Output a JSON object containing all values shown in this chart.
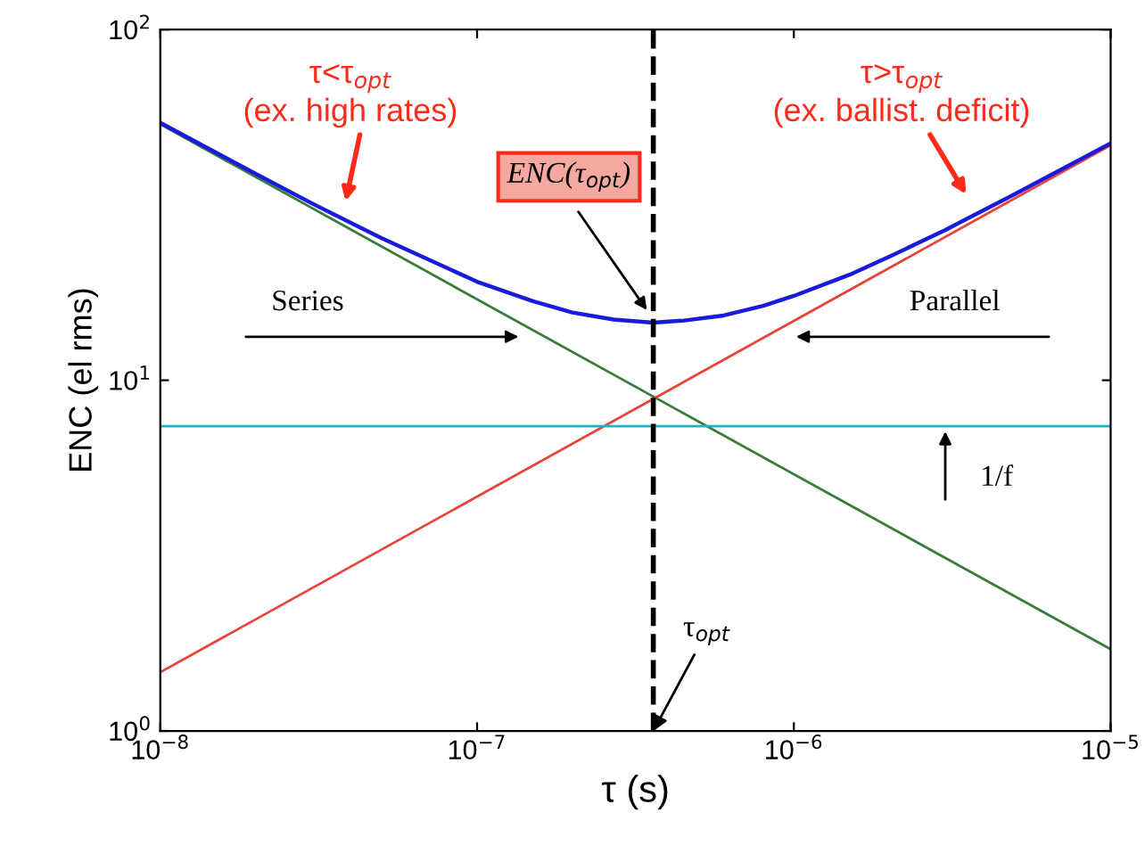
{
  "chart_data": {
    "type": "line",
    "xlabel": "τ (s)",
    "ylabel": "ENC (el rms)",
    "log": "xy",
    "grid": false,
    "xlim": [
      1e-08,
      1e-05
    ],
    "ylim": [
      1,
      100
    ],
    "xticks": [
      {
        "value": 1e-08,
        "label": "10$^{−8}$"
      },
      {
        "value": 1e-07,
        "label": "10$^{−7}$"
      },
      {
        "value": 1e-06,
        "label": "10$^{−6}$"
      },
      {
        "value": 1e-05,
        "label": "10$^{−5}$"
      }
    ],
    "yticks": [
      {
        "value": 1,
        "label": "10$^{0}$"
      },
      {
        "value": 10,
        "label": "10$^{1}$"
      },
      {
        "value": 100,
        "label": "10$^{2}$"
      }
    ],
    "series": [
      {
        "color": "#3a7d3a",
        "x": [
          1e-08,
          1e-05
        ],
        "values": [
          53.7,
          1.71
        ]
      },
      {
        "color": "#e8443a",
        "x": [
          1e-08,
          1e-05
        ],
        "values": [
          1.47,
          46.8
        ]
      },
      {
        "color": "#1fb3c4",
        "x": [
          1e-08,
          1e-05
        ],
        "values": [
          7.4,
          7.4
        ]
      },
      {
        "color": "#1a1adc",
        "x": [
          1e-08,
          2e-08,
          3e-08,
          5e-08,
          1e-07,
          1.5e-07,
          2e-07,
          2.7e-07,
          3.6e-07,
          4.5e-07,
          6e-07,
          8e-07,
          1e-06,
          1.5e-06,
          2e-06,
          3e-06,
          5e-06,
          1e-05
        ],
        "values": [
          54.2,
          38.8,
          32.0,
          25.4,
          19.1,
          16.8,
          15.6,
          14.9,
          14.6,
          14.8,
          15.3,
          16.3,
          17.4,
          20.0,
          22.5,
          26.8,
          34.0,
          47.4
        ]
      }
    ],
    "ref_lines": [
      {
        "axis": "x",
        "value": 3.6e-07,
        "color": "#000000",
        "line_style": "dashed"
      }
    ],
    "annotations": [
      "τ<τ$_{opt}$\n(ex. high rates)",
      "τ>τ$_{opt}$\n(ex. ballist. deficit)",
      "ENC(τ$_{opt}$)",
      "Series",
      "Parallel",
      "1/f",
      {
        "text": "τ$_{opt}$",
        "x": 3.6e-07,
        "y": 1
      }
    ]
  }
}
